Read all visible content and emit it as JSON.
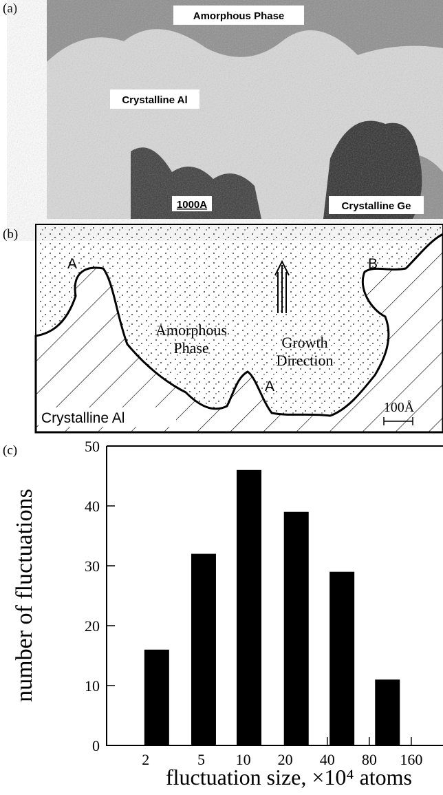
{
  "panel_a": {
    "label": "(a)",
    "amorphous": "Amorphous  Phase",
    "crystalline_al": "Crystalline Al",
    "scale": "1000A",
    "crystalline_ge": "Crystalline Ge"
  },
  "panel_b": {
    "label": "(b)",
    "mark_a_left": "A",
    "mark_b": "B",
    "mark_a_mid": "A",
    "amorphous_lines": [
      "Amorphous",
      "Phase"
    ],
    "growth_lines": [
      "Growth",
      "Direction"
    ],
    "crystalline_al": "Crystalline Al",
    "scale": "100Å"
  },
  "chart_data": {
    "type": "bar",
    "panel_label": "(c)",
    "xlabel": "fluctuation size, ×10⁴ atoms",
    "ylabel": "number of fluctuations",
    "x": [
      2.4,
      5.2,
      11,
      24,
      51,
      108
    ],
    "values": [
      16,
      32,
      46,
      39,
      29,
      11
    ],
    "color": "#000000",
    "xlog": true,
    "xlim": [
      1.05,
      270
    ],
    "xticks": [
      2,
      5,
      10,
      20,
      40,
      80,
      160
    ],
    "ylim": [
      0,
      50
    ],
    "yticks": [
      0,
      10,
      20,
      30,
      40,
      50
    ]
  }
}
